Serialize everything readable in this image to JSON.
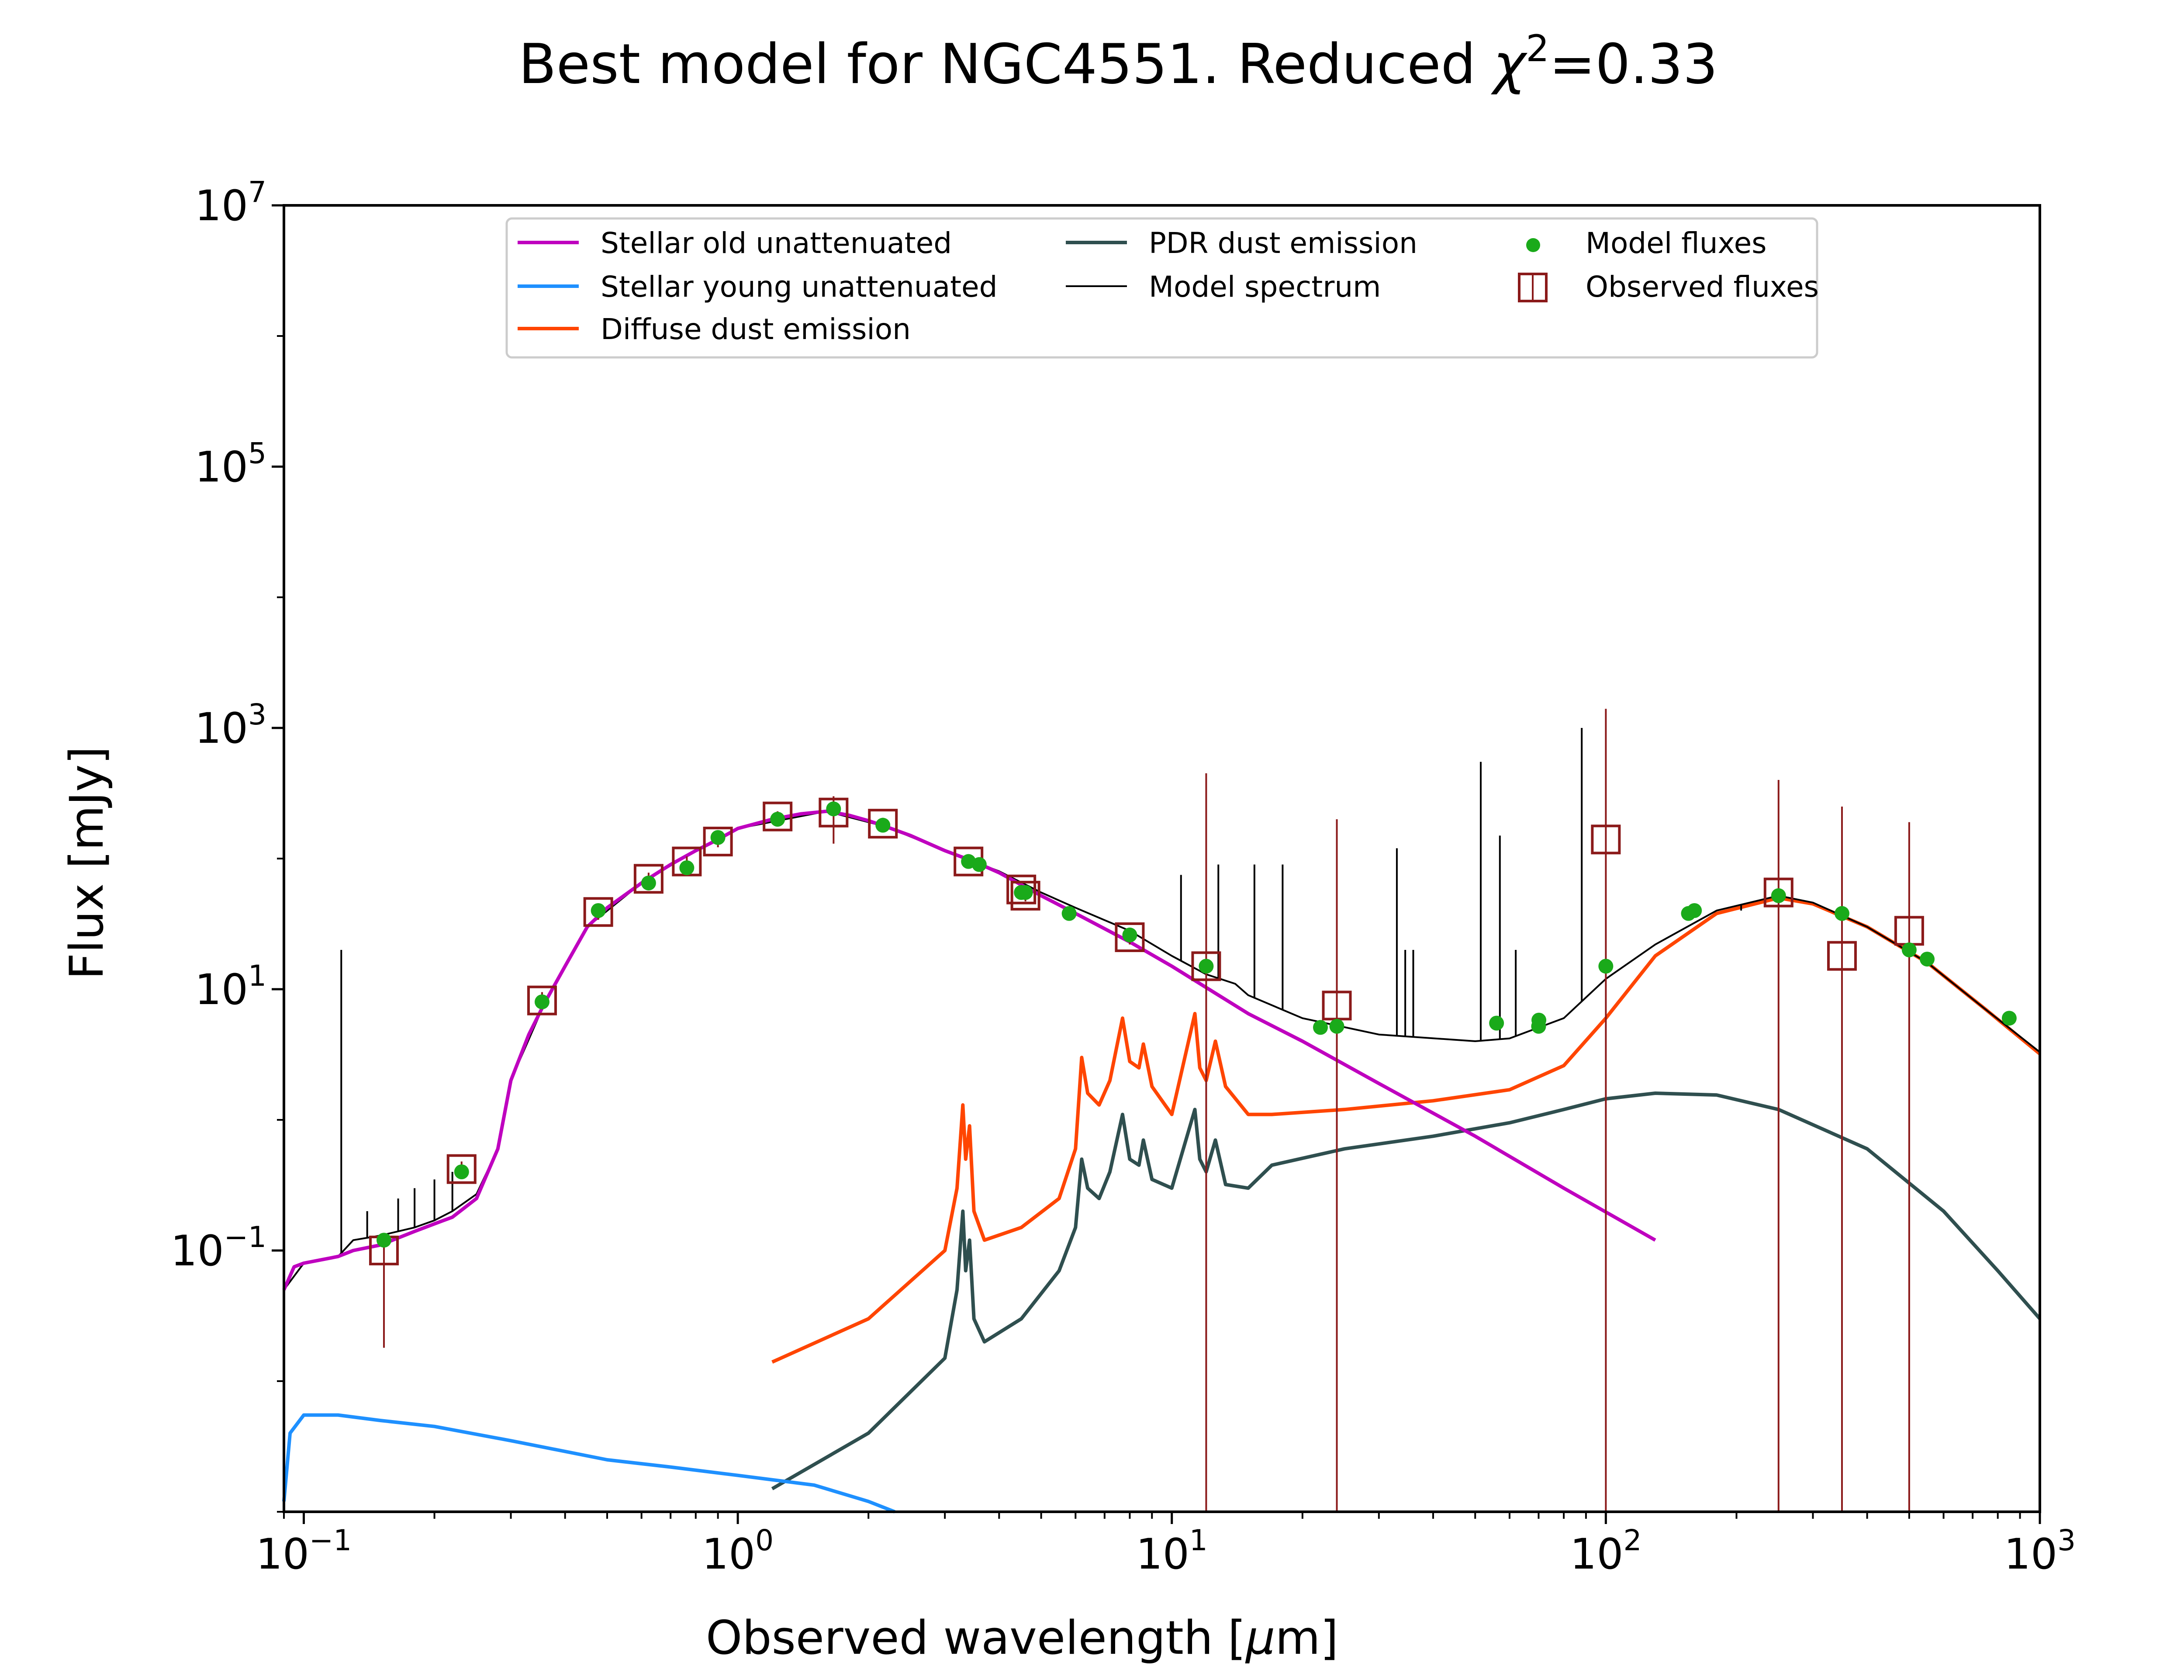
{
  "chart_data": {
    "type": "line",
    "title": "Best model for NGC4551. Reduced χ²=0.33",
    "title_prefix": "Best model for NGC4551. Reduced ",
    "title_chi": "χ",
    "title_sup": "2",
    "title_suffix": "=0.33",
    "xlabel": "Observed wavelength [μm]",
    "xlabel_prefix": "Observed wavelength [",
    "xlabel_mu": "μ",
    "xlabel_suffix": "m]",
    "ylabel": "Flux [mJy]",
    "x_scale": "log",
    "y_scale": "log",
    "xlim": [
      0.09,
      1000
    ],
    "ylim": [
      0.001,
      10000000
    ],
    "x_ticks": [
      {
        "value": 0.1,
        "base": "10",
        "exp": "−1"
      },
      {
        "value": 1,
        "base": "10",
        "exp": "0"
      },
      {
        "value": 10,
        "base": "10",
        "exp": "1"
      },
      {
        "value": 100,
        "base": "10",
        "exp": "2"
      },
      {
        "value": 1000,
        "base": "10",
        "exp": "3"
      }
    ],
    "y_ticks": [
      {
        "value": 0.1,
        "base": "10",
        "exp": "−1"
      },
      {
        "value": 10,
        "base": "10",
        "exp": "1"
      },
      {
        "value": 1000,
        "base": "10",
        "exp": "3"
      },
      {
        "value": 100000,
        "base": "10",
        "exp": "5"
      },
      {
        "value": 10000000,
        "base": "10",
        "exp": "7"
      }
    ],
    "grid": false,
    "legend_position": "top-center",
    "series": [
      {
        "name": "Stellar old unattenuated",
        "color": "#bf00bf",
        "kind": "line",
        "points": [
          [
            0.09,
            0.05
          ],
          [
            0.095,
            0.075
          ],
          [
            0.1,
            0.08
          ],
          [
            0.11,
            0.085
          ],
          [
            0.12,
            0.09
          ],
          [
            0.13,
            0.1
          ],
          [
            0.15,
            0.11
          ],
          [
            0.18,
            0.14
          ],
          [
            0.2,
            0.16
          ],
          [
            0.22,
            0.18
          ],
          [
            0.25,
            0.25
          ],
          [
            0.28,
            0.6
          ],
          [
            0.3,
            2.0
          ],
          [
            0.33,
            4.5
          ],
          [
            0.36,
            8
          ],
          [
            0.4,
            15
          ],
          [
            0.45,
            30
          ],
          [
            0.5,
            42
          ],
          [
            0.6,
            65
          ],
          [
            0.7,
            90
          ],
          [
            0.8,
            115
          ],
          [
            0.9,
            140
          ],
          [
            1.0,
            170
          ],
          [
            1.2,
            200
          ],
          [
            1.4,
            220
          ],
          [
            1.6,
            230
          ],
          [
            1.8,
            215
          ],
          [
            2.0,
            195
          ],
          [
            2.2,
            175
          ],
          [
            2.5,
            150
          ],
          [
            3.0,
            115
          ],
          [
            3.5,
            95
          ],
          [
            4.0,
            78
          ],
          [
            5.0,
            52
          ],
          [
            6.0,
            38
          ],
          [
            8.0,
            23
          ],
          [
            10.0,
            15
          ],
          [
            15.0,
            6.5
          ],
          [
            20.0,
            4.0
          ],
          [
            30.0,
            1.9
          ],
          [
            50.0,
            0.75
          ],
          [
            80.0,
            0.3
          ],
          [
            130.0,
            0.12
          ]
        ]
      },
      {
        "name": "Stellar young unattenuated",
        "color": "#1e90ff",
        "kind": "line",
        "points": [
          [
            0.09,
            0.0012
          ],
          [
            0.093,
            0.004
          ],
          [
            0.1,
            0.0055
          ],
          [
            0.12,
            0.0055
          ],
          [
            0.15,
            0.005
          ],
          [
            0.2,
            0.0045
          ],
          [
            0.3,
            0.0035
          ],
          [
            0.5,
            0.0025
          ],
          [
            0.7,
            0.0022
          ],
          [
            1.0,
            0.0019
          ],
          [
            1.5,
            0.0016
          ],
          [
            2.0,
            0.0012
          ],
          [
            2.3,
            0.001
          ]
        ]
      },
      {
        "name": "Diffuse dust emission",
        "color": "#ff4500",
        "kind": "line",
        "points": [
          [
            1.2,
            0.014
          ],
          [
            2.0,
            0.03
          ],
          [
            3.0,
            0.1
          ],
          [
            3.2,
            0.3
          ],
          [
            3.3,
            1.3
          ],
          [
            3.35,
            0.5
          ],
          [
            3.42,
            0.9
          ],
          [
            3.5,
            0.2
          ],
          [
            3.7,
            0.12
          ],
          [
            4.5,
            0.15
          ],
          [
            5.5,
            0.25
          ],
          [
            6.0,
            0.6
          ],
          [
            6.2,
            3.0
          ],
          [
            6.4,
            1.6
          ],
          [
            6.8,
            1.3
          ],
          [
            7.2,
            2.0
          ],
          [
            7.7,
            6.0
          ],
          [
            8.0,
            2.8
          ],
          [
            8.4,
            2.5
          ],
          [
            8.6,
            3.8
          ],
          [
            9.0,
            1.8
          ],
          [
            10.0,
            1.1
          ],
          [
            11.3,
            6.5
          ],
          [
            11.6,
            2.5
          ],
          [
            12.0,
            2.0
          ],
          [
            12.6,
            4.0
          ],
          [
            13.3,
            1.8
          ],
          [
            15.0,
            1.1
          ],
          [
            17.0,
            1.1
          ],
          [
            25.0,
            1.2
          ],
          [
            40.0,
            1.4
          ],
          [
            60.0,
            1.7
          ],
          [
            80.0,
            2.6
          ],
          [
            100.0,
            6.0
          ],
          [
            130.0,
            18
          ],
          [
            180.0,
            38
          ],
          [
            250.0,
            50
          ],
          [
            300.0,
            45
          ],
          [
            400.0,
            30
          ],
          [
            550.0,
            16
          ],
          [
            750.0,
            7
          ],
          [
            1000.0,
            3.2
          ]
        ]
      },
      {
        "name": "PDR dust emission",
        "color": "#2f4f4f",
        "kind": "line",
        "points": [
          [
            1.2,
            0.0015
          ],
          [
            2.0,
            0.004
          ],
          [
            3.0,
            0.015
          ],
          [
            3.2,
            0.05
          ],
          [
            3.3,
            0.2
          ],
          [
            3.35,
            0.07
          ],
          [
            3.42,
            0.12
          ],
          [
            3.5,
            0.03
          ],
          [
            3.7,
            0.02
          ],
          [
            4.5,
            0.03
          ],
          [
            5.5,
            0.07
          ],
          [
            6.0,
            0.15
          ],
          [
            6.2,
            0.5
          ],
          [
            6.4,
            0.3
          ],
          [
            6.8,
            0.25
          ],
          [
            7.2,
            0.4
          ],
          [
            7.7,
            1.1
          ],
          [
            8.0,
            0.5
          ],
          [
            8.4,
            0.45
          ],
          [
            8.6,
            0.7
          ],
          [
            9.0,
            0.35
          ],
          [
            10.0,
            0.3
          ],
          [
            11.3,
            1.2
          ],
          [
            11.6,
            0.5
          ],
          [
            12.0,
            0.4
          ],
          [
            12.6,
            0.7
          ],
          [
            13.3,
            0.32
          ],
          [
            15.0,
            0.3
          ],
          [
            17.0,
            0.45
          ],
          [
            25.0,
            0.6
          ],
          [
            40.0,
            0.75
          ],
          [
            60.0,
            0.95
          ],
          [
            80.0,
            1.2
          ],
          [
            100.0,
            1.45
          ],
          [
            130.0,
            1.6
          ],
          [
            180.0,
            1.55
          ],
          [
            250.0,
            1.2
          ],
          [
            400.0,
            0.6
          ],
          [
            600.0,
            0.2
          ],
          [
            800.0,
            0.07
          ],
          [
            1000.0,
            0.03
          ]
        ]
      },
      {
        "name": "Model spectrum",
        "color": "#000000",
        "kind": "line",
        "points": [
          [
            0.09,
            0.05
          ],
          [
            0.1,
            0.08
          ],
          [
            0.12,
            0.09
          ],
          [
            0.13,
            0.12
          ],
          [
            0.15,
            0.13
          ],
          [
            0.18,
            0.15
          ],
          [
            0.2,
            0.17
          ],
          [
            0.22,
            0.2
          ],
          [
            0.25,
            0.27
          ],
          [
            0.28,
            0.6
          ],
          [
            0.3,
            2.0
          ],
          [
            0.36,
            8
          ],
          [
            0.45,
            30
          ],
          [
            0.6,
            65
          ],
          [
            0.8,
            115
          ],
          [
            1.0,
            170
          ],
          [
            1.6,
            230
          ],
          [
            2.2,
            175
          ],
          [
            3.0,
            115
          ],
          [
            4.0,
            80
          ],
          [
            5.0,
            55
          ],
          [
            6.0,
            42
          ],
          [
            8.0,
            28
          ],
          [
            10.0,
            18
          ],
          [
            12.0,
            13
          ],
          [
            14.0,
            11
          ],
          [
            15.0,
            9
          ],
          [
            20.0,
            6.0
          ],
          [
            30.0,
            4.5
          ],
          [
            50.0,
            4.0
          ],
          [
            60.0,
            4.2
          ],
          [
            80.0,
            6.0
          ],
          [
            100.0,
            12
          ],
          [
            130.0,
            22
          ],
          [
            180.0,
            40
          ],
          [
            250.0,
            52
          ],
          [
            300.0,
            46
          ],
          [
            400.0,
            30
          ],
          [
            550.0,
            16
          ],
          [
            750.0,
            7
          ],
          [
            1000.0,
            3.3
          ]
        ]
      }
    ],
    "spectrum_spikes": [
      [
        0.122,
        20
      ],
      [
        0.14,
        0.2
      ],
      [
        0.165,
        0.25
      ],
      [
        0.18,
        0.3
      ],
      [
        0.2,
        0.35
      ],
      [
        0.22,
        0.4
      ],
      [
        10.5,
        75
      ],
      [
        12.8,
        90
      ],
      [
        15.5,
        90
      ],
      [
        18.0,
        90
      ],
      [
        33.0,
        120
      ],
      [
        34.5,
        20
      ],
      [
        36.0,
        20
      ],
      [
        51.5,
        550
      ],
      [
        57.0,
        150
      ],
      [
        62.0,
        20
      ],
      [
        88.0,
        1000
      ],
      [
        205.0,
        40
      ]
    ],
    "model_fluxes": {
      "name": "Model fluxes",
      "color": "#1aaa1a",
      "points": [
        [
          0.153,
          0.12
        ],
        [
          0.231,
          0.4
        ],
        [
          0.354,
          8
        ],
        [
          0.477,
          40
        ],
        [
          0.623,
          65
        ],
        [
          0.763,
          85
        ],
        [
          0.9,
          145
        ],
        [
          1.235,
          200
        ],
        [
          1.662,
          240
        ],
        [
          2.159,
          180
        ],
        [
          3.4,
          95
        ],
        [
          3.6,
          90
        ],
        [
          4.5,
          55
        ],
        [
          4.6,
          55
        ],
        [
          5.8,
          38
        ],
        [
          8.0,
          26
        ],
        [
          12.0,
          15
        ],
        [
          22.0,
          5.1
        ],
        [
          24.0,
          5.2
        ],
        [
          56.0,
          5.5
        ],
        [
          70.0,
          5.2
        ],
        [
          70.1,
          5.8
        ],
        [
          100.0,
          15
        ],
        [
          155.0,
          38
        ],
        [
          160.0,
          40
        ],
        [
          250.0,
          52
        ],
        [
          350.0,
          38
        ],
        [
          500.0,
          20
        ],
        [
          550.0,
          17
        ],
        [
          850.0,
          6.0
        ]
      ]
    },
    "observed_fluxes": {
      "name": "Observed fluxes",
      "color": "#8b1a1a",
      "points": [
        {
          "x": 0.153,
          "y": 0.1,
          "lo": 0.018,
          "hi": 0.11
        },
        {
          "x": 0.231,
          "y": 0.42,
          "lo": 0.36,
          "hi": 0.48
        },
        {
          "x": 0.354,
          "y": 8.2,
          "lo": 7.0,
          "hi": 9.5
        },
        {
          "x": 0.477,
          "y": 39,
          "lo": 34,
          "hi": 44
        },
        {
          "x": 0.623,
          "y": 70,
          "lo": 62,
          "hi": 78
        },
        {
          "x": 0.763,
          "y": 95,
          "lo": 86,
          "hi": 104
        },
        {
          "x": 0.9,
          "y": 135,
          "lo": 122,
          "hi": 148
        },
        {
          "x": 1.235,
          "y": 210,
          "lo": 190,
          "hi": 230
        },
        {
          "x": 1.662,
          "y": 225,
          "lo": 130,
          "hi": 300
        },
        {
          "x": 2.159,
          "y": 185,
          "lo": 165,
          "hi": 205
        },
        {
          "x": 3.4,
          "y": 95,
          "lo": 88,
          "hi": 102
        },
        {
          "x": 4.5,
          "y": 58,
          "lo": 53,
          "hi": 63
        },
        {
          "x": 4.6,
          "y": 52,
          "lo": 47,
          "hi": 57
        },
        {
          "x": 8.0,
          "y": 25,
          "lo": 22,
          "hi": 28
        },
        {
          "x": 12.0,
          "y": 15,
          "lo": 0.001,
          "hi": 450
        },
        {
          "x": 24.0,
          "y": 7.5,
          "lo": 0.001,
          "hi": 200
        },
        {
          "x": 100.0,
          "y": 140,
          "lo": 0.001,
          "hi": 1400
        },
        {
          "x": 250.0,
          "y": 55,
          "lo": 0.001,
          "hi": 400
        },
        {
          "x": 350.0,
          "y": 18,
          "lo": 0.001,
          "hi": 250
        },
        {
          "x": 500.0,
          "y": 28,
          "lo": 0.001,
          "hi": 190
        }
      ]
    },
    "legend": [
      {
        "label": "Stellar old unattenuated",
        "marker": "line",
        "color": "#bf00bf"
      },
      {
        "label": "Stellar young unattenuated",
        "marker": "line",
        "color": "#1e90ff"
      },
      {
        "label": "Diffuse dust emission",
        "marker": "line",
        "color": "#ff4500"
      },
      {
        "label": "PDR dust emission",
        "marker": "line",
        "color": "#2f4f4f"
      },
      {
        "label": "Model spectrum",
        "marker": "thin-line",
        "color": "#000000"
      },
      {
        "label": "Model fluxes",
        "marker": "dot",
        "color": "#1aaa1a"
      },
      {
        "label": "Observed fluxes",
        "marker": "square",
        "color": "#8b1a1a"
      }
    ]
  }
}
